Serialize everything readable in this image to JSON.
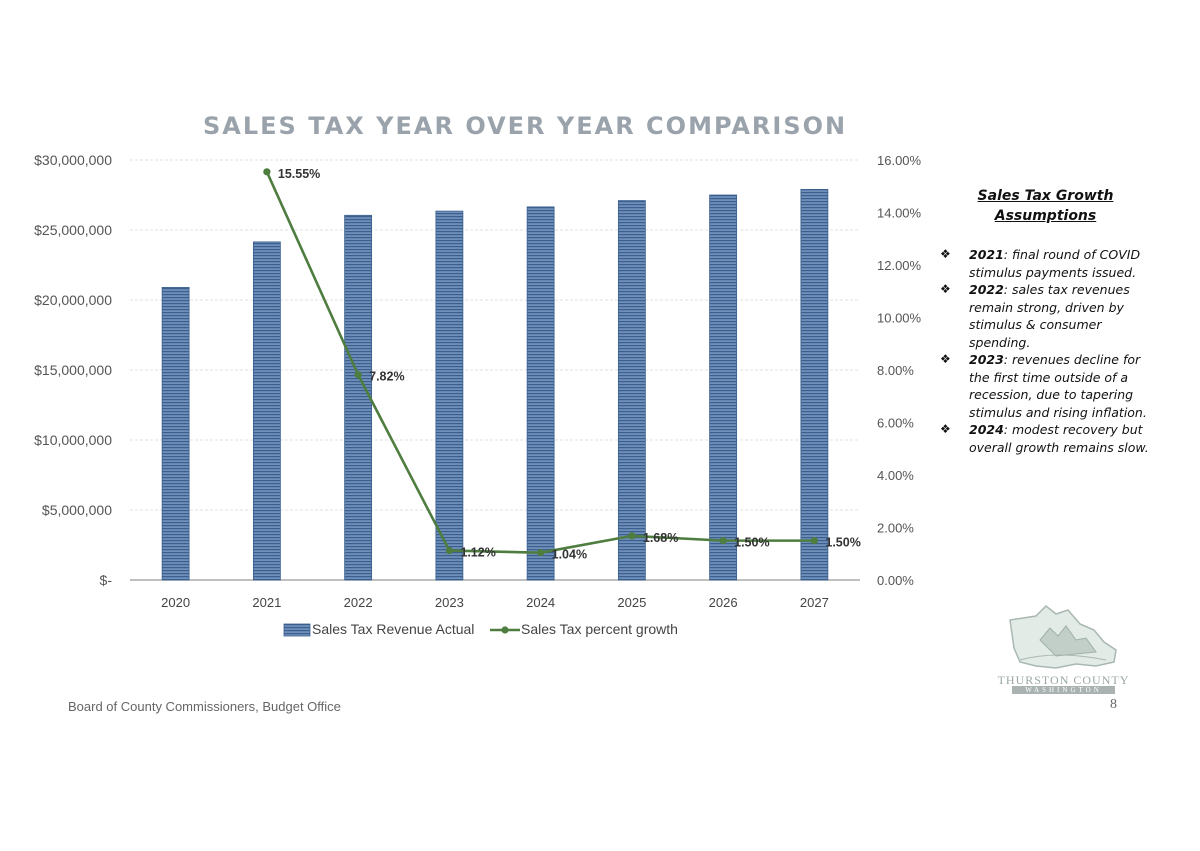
{
  "chart_data": {
    "type": "bar",
    "title": "SALES TAX YEAR OVER YEAR COMPARISON",
    "categories": [
      "2020",
      "2021",
      "2022",
      "2023",
      "2024",
      "2025",
      "2026",
      "2027"
    ],
    "series": [
      {
        "name": "Sales Tax Revenue Actual",
        "type": "bar",
        "axis": "left",
        "color": "#4a72a3",
        "values": [
          20900000,
          24150000,
          26050000,
          26350000,
          26650000,
          27100000,
          27500000,
          27900000
        ]
      },
      {
        "name": "Sales Tax percent growth",
        "type": "line",
        "axis": "right",
        "color": "#4e7d3f",
        "values": [
          null,
          15.55,
          7.82,
          1.12,
          1.04,
          1.68,
          1.5,
          1.5
        ],
        "labels": [
          "",
          "15.55%",
          "7.82%",
          "1.12%",
          "1.04%",
          "1.68%",
          "1.50%",
          "1.50%"
        ]
      }
    ],
    "y_left": {
      "range": [
        0,
        30000000
      ],
      "ticks": [
        0,
        5000000,
        10000000,
        15000000,
        20000000,
        25000000,
        30000000
      ],
      "tick_labels": [
        "$-",
        "$5,000,000",
        "$10,000,000",
        "$15,000,000",
        "$20,000,000",
        "$25,000,000",
        "$30,000,000"
      ]
    },
    "y_right": {
      "range": [
        0,
        16
      ],
      "ticks": [
        0,
        2,
        4,
        6,
        8,
        10,
        12,
        14,
        16
      ],
      "tick_labels": [
        "0.00%",
        "2.00%",
        "4.00%",
        "6.00%",
        "8.00%",
        "10.00%",
        "12.00%",
        "14.00%",
        "16.00%"
      ]
    },
    "legend_position": "bottom",
    "grid": true
  },
  "assumptions": {
    "heading": "Sales Tax Growth Assumptions",
    "bullet_glyph": "❖",
    "items": [
      {
        "year": "2021",
        "text": ": final round of COVID stimulus payments issued."
      },
      {
        "year": "2022",
        "text": ": sales tax revenues remain strong, driven by stimulus & consumer spending."
      },
      {
        "year": "2023",
        "text": ": revenues decline for the first time outside of a recession, due to tapering stimulus and rising inflation."
      },
      {
        "year": "2024",
        "text": ": modest recovery but overall growth remains slow."
      }
    ]
  },
  "footer": {
    "office": "Board of County Commissioners, Budget Office",
    "page_number": "8"
  },
  "logo": {
    "name": "THURSTON COUNTY",
    "subtitle": "WASHINGTON"
  }
}
